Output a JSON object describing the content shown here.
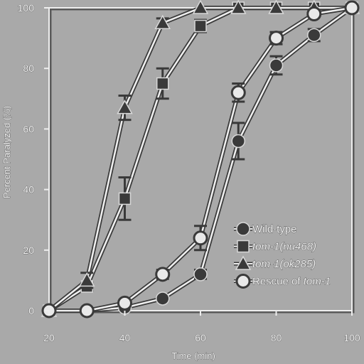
{
  "chart_data": {
    "type": "line",
    "title": "",
    "xlabel": "Time (min)",
    "ylabel": "Percent Paralyzed (%)",
    "xlim": [
      20,
      100
    ],
    "ylim": [
      0,
      100
    ],
    "xticks": [
      20,
      40,
      60,
      80,
      100
    ],
    "yticks": [
      0,
      20,
      40,
      60,
      80,
      100
    ],
    "grid": false,
    "legend_position": "lower-right",
    "x": [
      20,
      30,
      40,
      50,
      60,
      70,
      80,
      90,
      100
    ],
    "series": [
      {
        "name": "Wild-type",
        "marker": "circle-filled",
        "values": [
          0,
          0,
          1,
          4,
          12,
          56,
          81,
          91,
          100
        ],
        "error": [
          0,
          0,
          0.5,
          0.5,
          1.5,
          6,
          3,
          2,
          0
        ]
      },
      {
        "name": "tom-1(nu468)",
        "marker": "square-filled",
        "values": [
          0,
          8,
          37,
          75,
          94,
          100,
          100,
          100,
          100
        ],
        "error": [
          0,
          1.5,
          7,
          5,
          2,
          0,
          0,
          0,
          0
        ]
      },
      {
        "name": "tom-1(ok285)",
        "marker": "triangle-filled",
        "values": [
          0,
          10,
          67,
          95,
          100,
          100,
          100,
          100,
          100
        ],
        "error": [
          0,
          2.5,
          4,
          1.5,
          0,
          0,
          0,
          0,
          0
        ]
      },
      {
        "name": "Rescue of tom-1",
        "marker": "circle-open",
        "values": [
          0,
          0,
          2.5,
          12,
          24,
          72,
          90,
          98,
          100
        ],
        "error": [
          0,
          0,
          1,
          1.5,
          4,
          3,
          2,
          1,
          0
        ]
      }
    ],
    "legend": [
      {
        "series": 0,
        "prefix": "",
        "italic": "",
        "suffix": "Wild-type"
      },
      {
        "series": 1,
        "prefix": "",
        "italic": "tom-1(nu468)",
        "suffix": ""
      },
      {
        "series": 2,
        "prefix": "",
        "italic": "tom-1(ok285)",
        "suffix": ""
      },
      {
        "series": 3,
        "prefix": "Rescue of ",
        "italic": "tom-1",
        "suffix": ""
      }
    ]
  }
}
